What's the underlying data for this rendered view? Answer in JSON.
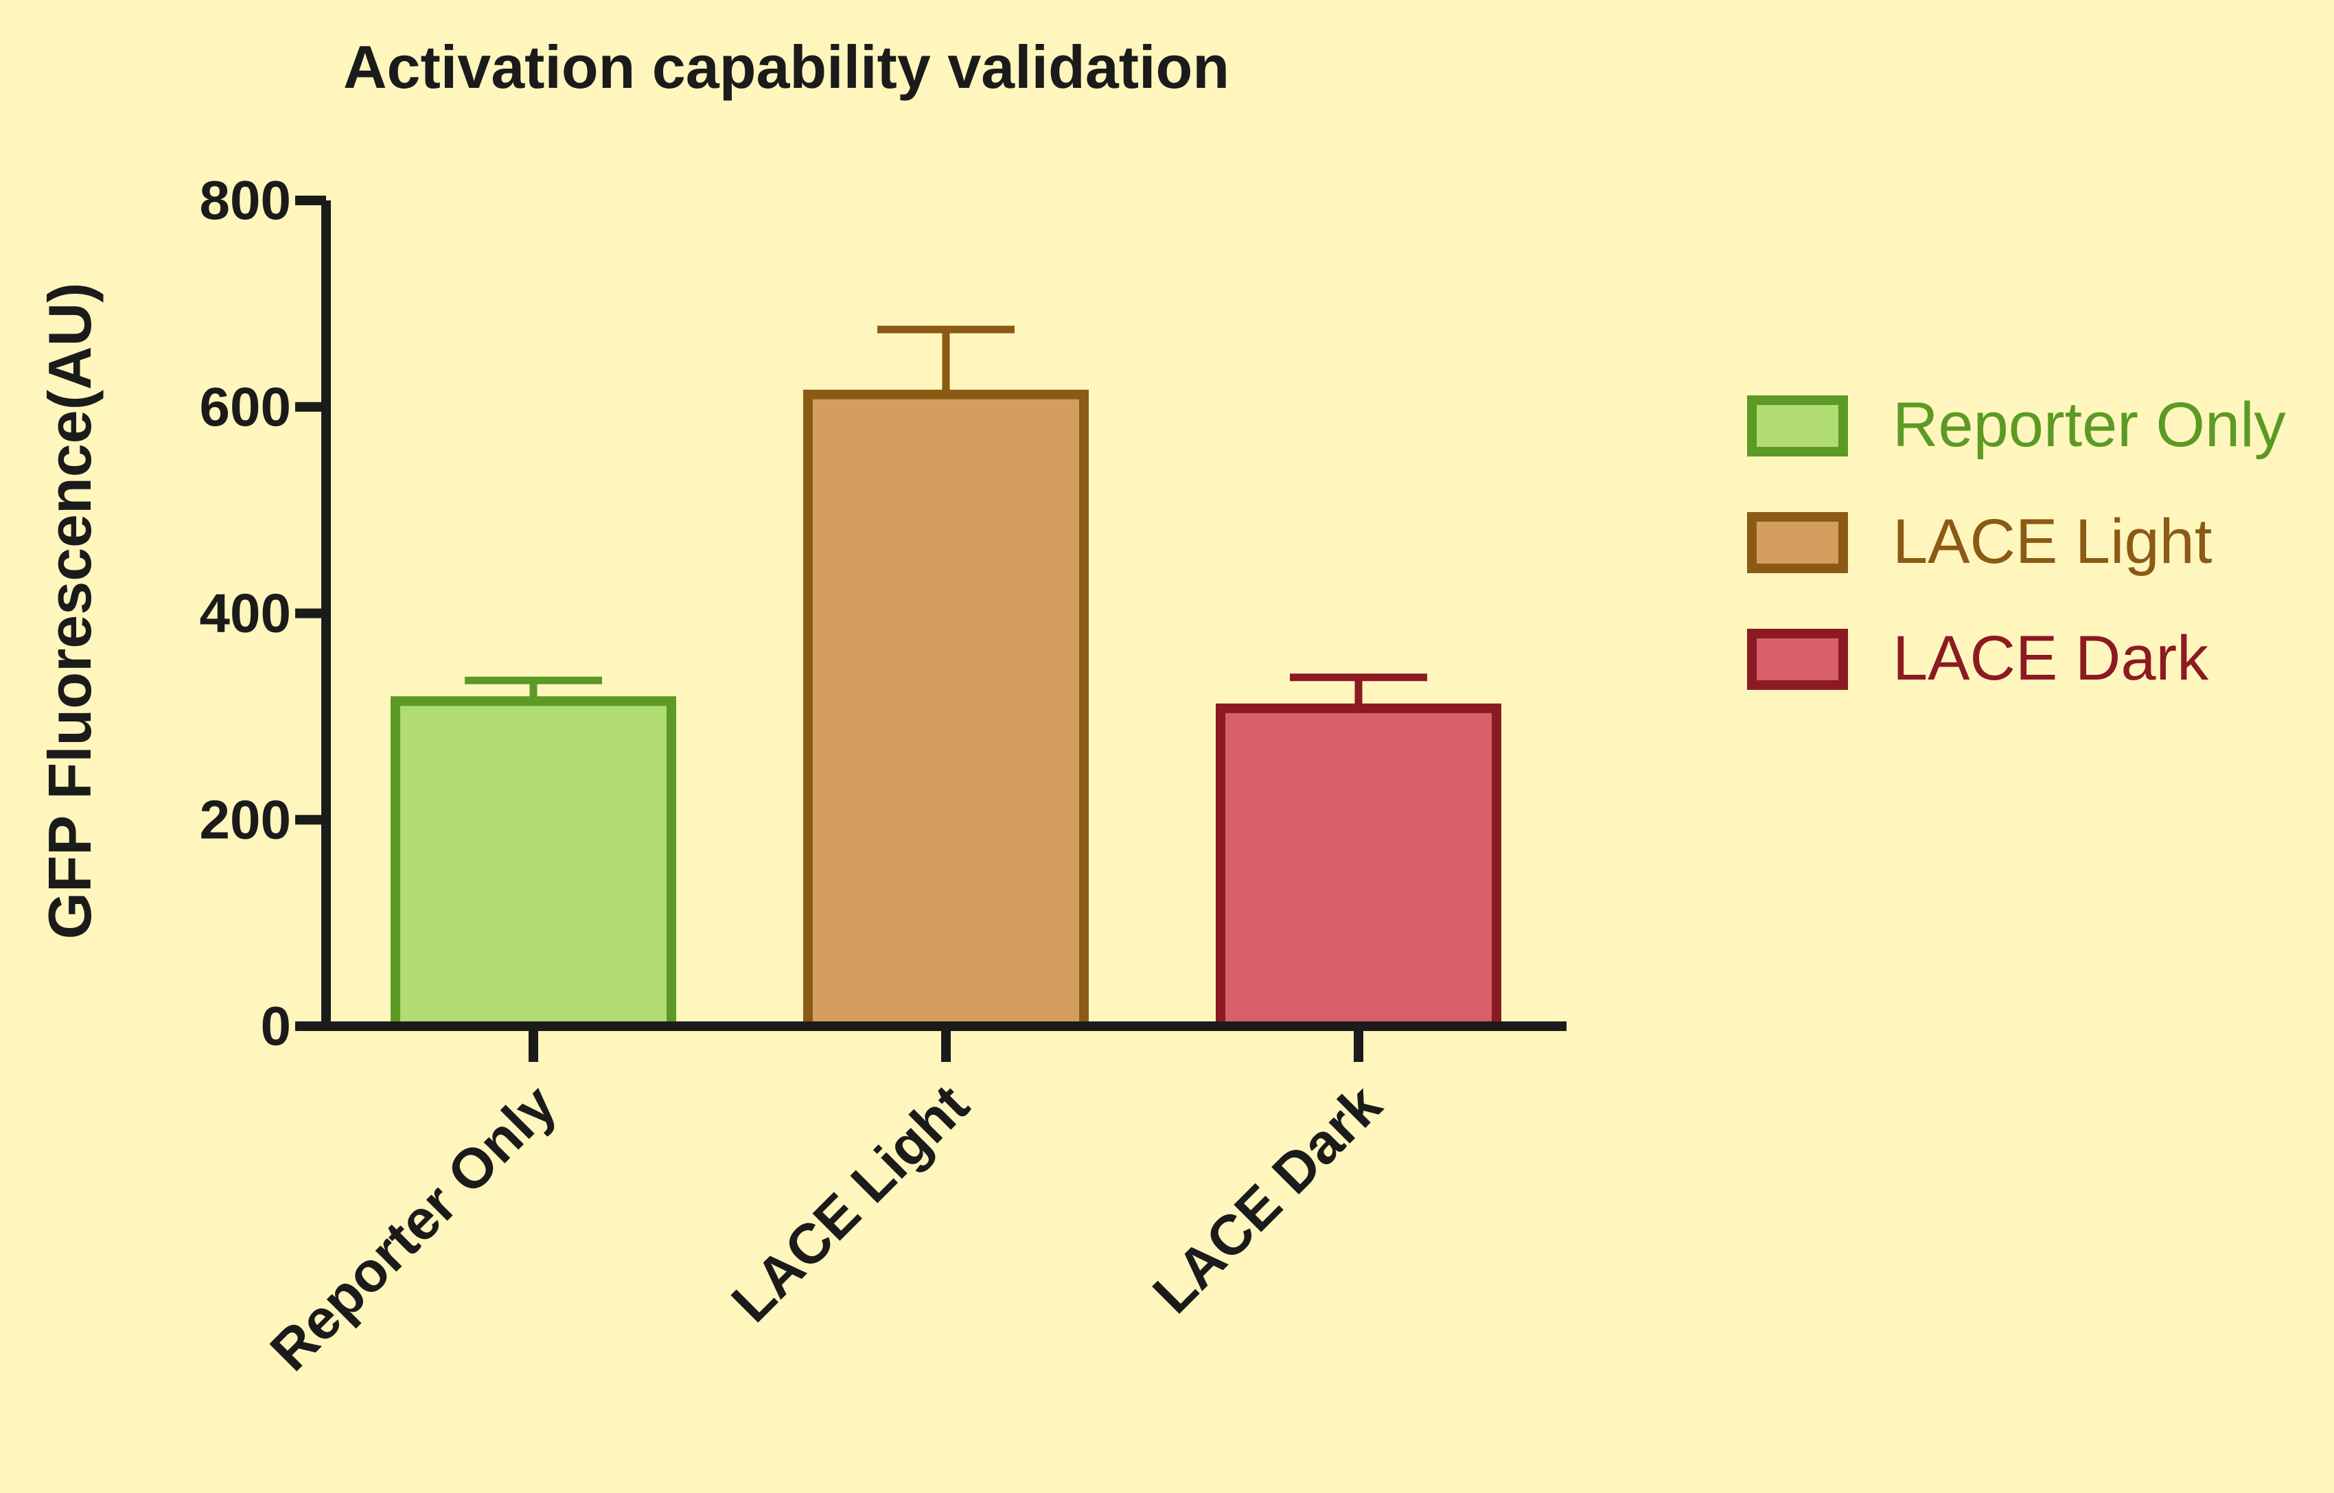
{
  "chart_data": {
    "type": "bar",
    "title": "Activation capability validation",
    "xlabel": "",
    "ylabel": "GFP Fluorescence(AU)",
    "ylim": [
      0,
      800
    ],
    "yticks": [
      0,
      200,
      400,
      600,
      800
    ],
    "ytick_labels": [
      "0",
      "200",
      "400",
      "600",
      "800"
    ],
    "categories": [
      "Reporter Only",
      "LACE Light",
      "LACE Dark"
    ],
    "values": [
      315,
      612,
      308
    ],
    "error_upper": [
      335,
      675,
      338
    ],
    "colors": {
      "fill": [
        "#b0dc73",
        "#d49f5e",
        "#d65f6b"
      ],
      "stroke": [
        "#5b9a24",
        "#8b5a14",
        "#8b1a22"
      ]
    },
    "grid": false,
    "legend": {
      "placement": "right",
      "entries": [
        "Reporter Only",
        "LACE Light",
        "LACE Dark"
      ]
    }
  }
}
